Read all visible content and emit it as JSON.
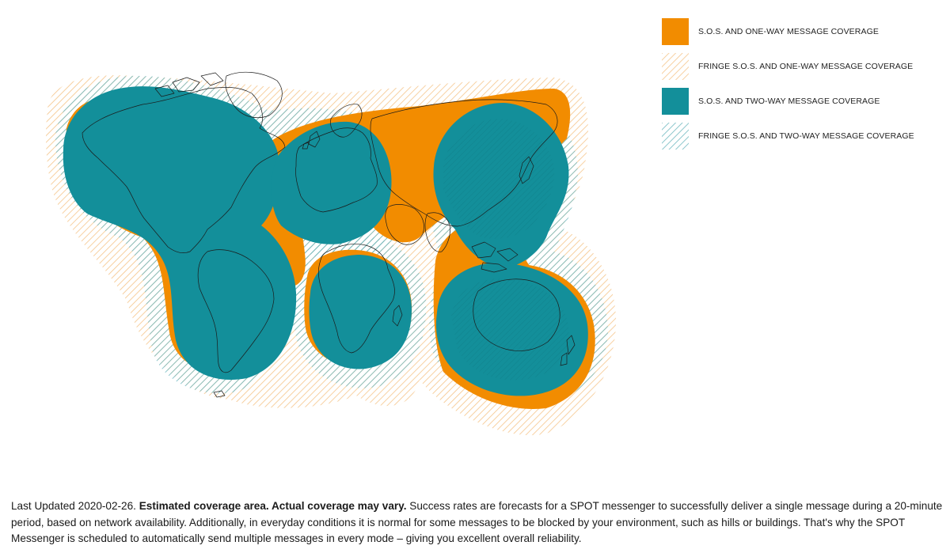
{
  "colors": {
    "orange": "#F28C00",
    "teal": "#138F9A",
    "fringe_orange": "#F5C58A",
    "fringe_teal": "#6FB8C0",
    "land_outline": "#1b1b1b"
  },
  "legend": {
    "items": [
      {
        "label": "S.O.S. AND ONE-WAY MESSAGE COVERAGE",
        "style": "solid",
        "color": "orange"
      },
      {
        "label": "FRINGE S.O.S. AND ONE-WAY MESSAGE COVERAGE",
        "style": "hatch",
        "color": "fringe_orange"
      },
      {
        "label": "S.O.S. AND TWO-WAY MESSAGE COVERAGE",
        "style": "solid",
        "color": "teal"
      },
      {
        "label": "FRINGE S.O.S. AND TWO-WAY MESSAGE COVERAGE",
        "style": "hatch",
        "color": "fringe_teal"
      }
    ]
  },
  "footnote": {
    "part1": "Last Updated 2020-02-26. ",
    "bold": "Estimated coverage area. Actual coverage may vary.",
    "part2": " Success rates are forecasts for a SPOT messenger to successfully deliver a single message during a 20-minute period, based on network availability. Additionally, in everyday conditions it is normal for some messages to be blocked by your environment, such as hills or buildings. That's why the SPOT Messenger is scheduled to automatically send multiple messages in every mode – giving you excellent overall reliability."
  }
}
